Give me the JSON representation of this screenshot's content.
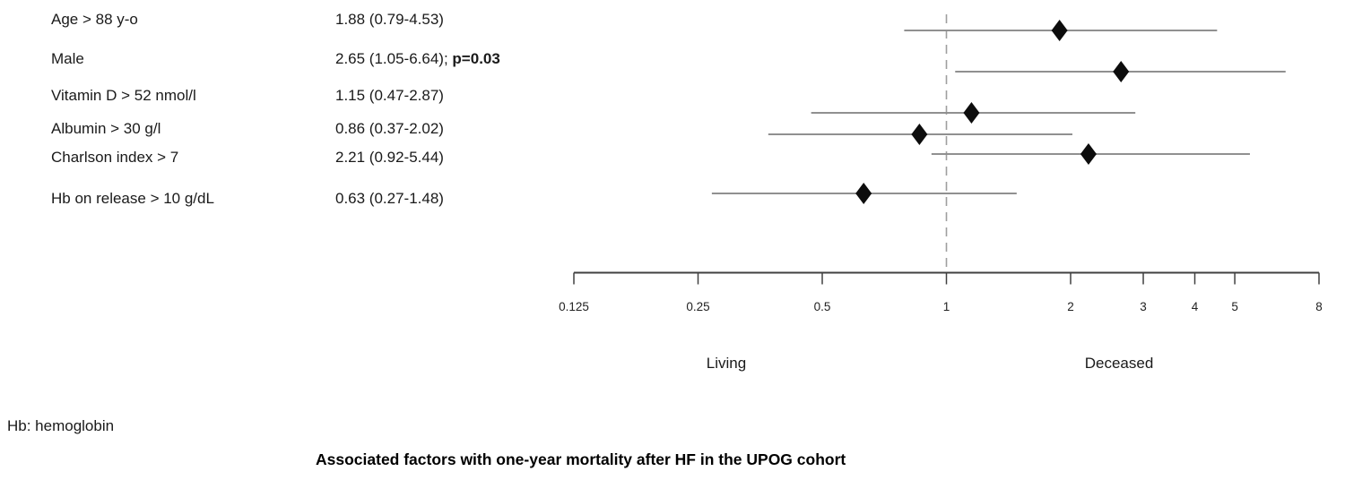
{
  "title": "Associated factors with one-year mortality after HF in the UPOG cohort",
  "footnote": "Hb: hemoglobin",
  "table": {
    "rows": [
      {
        "label": "Age > 88 y-o",
        "value": "1.88 (0.79-4.53)",
        "p": ""
      },
      {
        "label": "Male",
        "value": "2.65 (1.05-6.64); ",
        "p": "p=0.03"
      },
      {
        "label": "Vitamin D > 52 nmol/l",
        "value": "1.15 (0.47-2.87)",
        "p": ""
      },
      {
        "label": "Albumin > 30 g/l",
        "value": "0.86 (0.37-2.02)",
        "p": ""
      },
      {
        "label": "Charlson index > 7",
        "value": "2.21 (0.92-5.44)",
        "p": ""
      },
      {
        "label": "Hb on release > 10 g/dL",
        "value": "0.63 (0.27-1.48)",
        "p": ""
      }
    ]
  },
  "chart_data": {
    "type": "forest",
    "x_scale": "log2",
    "xlim": [
      0.125,
      8
    ],
    "x_ticks": [
      0.125,
      0.25,
      0.5,
      1,
      2,
      3,
      4,
      5,
      8
    ],
    "x_tick_labels": [
      "0.125",
      "0.25",
      "0.5",
      "1",
      "2",
      "3",
      "4",
      "5",
      "8"
    ],
    "reference_line": 1,
    "points": [
      {
        "label": "Age > 88 y-o",
        "or": 1.88,
        "ci_low": 0.79,
        "ci_high": 4.53
      },
      {
        "label": "Male",
        "or": 2.65,
        "ci_low": 1.05,
        "ci_high": 6.64
      },
      {
        "label": "Vitamin D > 52 nmol/l",
        "or": 1.15,
        "ci_low": 0.47,
        "ci_high": 2.87
      },
      {
        "label": "Albumin > 30 g/l",
        "or": 0.86,
        "ci_low": 0.37,
        "ci_high": 2.02
      },
      {
        "label": "Charlson index > 7",
        "or": 2.21,
        "ci_low": 0.92,
        "ci_high": 5.44
      },
      {
        "label": "Hb on release > 10 g/dL",
        "or": 0.63,
        "ci_low": 0.27,
        "ci_high": 1.48
      }
    ],
    "direction_labels": {
      "left": "Living",
      "right": "Deceased"
    },
    "colors": {
      "diamond": "#0d0d0d",
      "ci_line": "#909090",
      "axis": "#404040",
      "ref_line": "#9e9e9e",
      "tick_text": "#222222"
    }
  }
}
